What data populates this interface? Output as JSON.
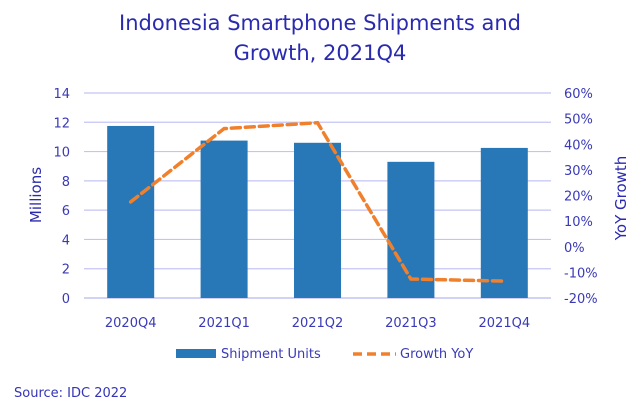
{
  "chart_data": {
    "type": "bar",
    "title_line1": "Indonesia Smartphone Shipments and",
    "title_line2": "Growth, 2021Q4",
    "categories": [
      "2020Q4",
      "2021Q1",
      "2021Q2",
      "2021Q3",
      "2021Q4"
    ],
    "series": [
      {
        "name": "Shipment Units",
        "type": "bar",
        "axis": "left",
        "color": "#2878b8",
        "values": [
          11.75,
          10.75,
          10.6,
          9.3,
          10.25
        ]
      },
      {
        "name": "Growth YoY",
        "type": "line",
        "axis": "right",
        "style": "dashed",
        "color": "#f0802c",
        "values": [
          17.5,
          46.1,
          48.4,
          -12.6,
          -13.4
        ]
      }
    ],
    "ylabel": "Millions",
    "ylim": [
      0,
      14
    ],
    "yticks": [
      0,
      2,
      4,
      6,
      8,
      10,
      12,
      14
    ],
    "y2label": "YoY Growth",
    "y2lim": [
      -20,
      60
    ],
    "y2ticks": [
      -20,
      -10,
      0,
      10,
      20,
      30,
      40,
      50,
      60
    ],
    "y2tick_suffix": "%",
    "grid": true,
    "legend_position": "bottom",
    "grid_color": "#c4c4f4",
    "text_color": "#2a2ab0"
  },
  "source": "Source: IDC 2022"
}
